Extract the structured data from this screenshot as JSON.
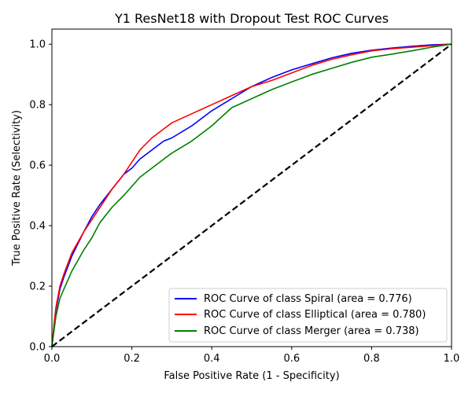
{
  "chart_data": {
    "type": "line",
    "title": "Y1 ResNet18 with Dropout Test ROC Curves",
    "xlabel": "False Positive Rate (1 - Specificity)",
    "ylabel": "True Positive Rate (Selectivity)",
    "xlim": [
      0.0,
      1.0
    ],
    "ylim": [
      0.0,
      1.05
    ],
    "x_ticks": [
      "0.0",
      "0.2",
      "0.4",
      "0.6",
      "0.8",
      "1.0"
    ],
    "y_ticks": [
      "0.0",
      "0.2",
      "0.4",
      "0.6",
      "0.8",
      "1.0"
    ],
    "grid": false,
    "legend_position": "lower-right",
    "series": [
      {
        "name": "ROC Curve of class Spiral (area = 0.776)",
        "color": "#0000ff",
        "x": [
          0.0,
          0.005,
          0.01,
          0.02,
          0.03,
          0.05,
          0.08,
          0.1,
          0.12,
          0.15,
          0.18,
          0.2,
          0.22,
          0.25,
          0.28,
          0.3,
          0.35,
          0.4,
          0.45,
          0.5,
          0.55,
          0.6,
          0.65,
          0.7,
          0.75,
          0.8,
          0.85,
          0.9,
          0.95,
          1.0
        ],
        "y": [
          0.0,
          0.06,
          0.12,
          0.19,
          0.23,
          0.3,
          0.38,
          0.43,
          0.47,
          0.52,
          0.57,
          0.59,
          0.62,
          0.65,
          0.68,
          0.69,
          0.73,
          0.78,
          0.82,
          0.86,
          0.89,
          0.915,
          0.935,
          0.955,
          0.97,
          0.98,
          0.987,
          0.993,
          0.998,
          1.0
        ]
      },
      {
        "name": "ROC Curve of class Elliptical (area = 0.780)",
        "color": "#ff0000",
        "x": [
          0.0,
          0.005,
          0.01,
          0.02,
          0.03,
          0.05,
          0.08,
          0.1,
          0.12,
          0.15,
          0.18,
          0.2,
          0.22,
          0.25,
          0.28,
          0.3,
          0.35,
          0.4,
          0.45,
          0.5,
          0.55,
          0.6,
          0.65,
          0.7,
          0.75,
          0.8,
          0.85,
          0.9,
          0.95,
          1.0
        ],
        "y": [
          0.0,
          0.07,
          0.13,
          0.2,
          0.24,
          0.31,
          0.38,
          0.42,
          0.46,
          0.52,
          0.57,
          0.61,
          0.65,
          0.69,
          0.72,
          0.74,
          0.77,
          0.8,
          0.83,
          0.86,
          0.88,
          0.905,
          0.93,
          0.95,
          0.965,
          0.978,
          0.985,
          0.99,
          0.995,
          1.0
        ]
      },
      {
        "name": "ROC Curve of class Merger (area = 0.738)",
        "color": "#008000",
        "x": [
          0.0,
          0.005,
          0.01,
          0.02,
          0.03,
          0.05,
          0.08,
          0.1,
          0.12,
          0.15,
          0.18,
          0.2,
          0.22,
          0.25,
          0.28,
          0.3,
          0.35,
          0.4,
          0.45,
          0.5,
          0.55,
          0.6,
          0.65,
          0.7,
          0.75,
          0.8,
          0.85,
          0.9,
          0.95,
          1.0
        ],
        "y": [
          0.0,
          0.05,
          0.1,
          0.16,
          0.19,
          0.25,
          0.32,
          0.36,
          0.41,
          0.46,
          0.5,
          0.53,
          0.56,
          0.59,
          0.62,
          0.64,
          0.68,
          0.73,
          0.79,
          0.82,
          0.85,
          0.875,
          0.9,
          0.92,
          0.94,
          0.957,
          0.967,
          0.978,
          0.99,
          1.0
        ]
      }
    ],
    "reference_line": {
      "x": [
        0.0,
        1.0
      ],
      "y": [
        0.0,
        1.0
      ],
      "color": "#000000",
      "style": "dashed"
    }
  }
}
